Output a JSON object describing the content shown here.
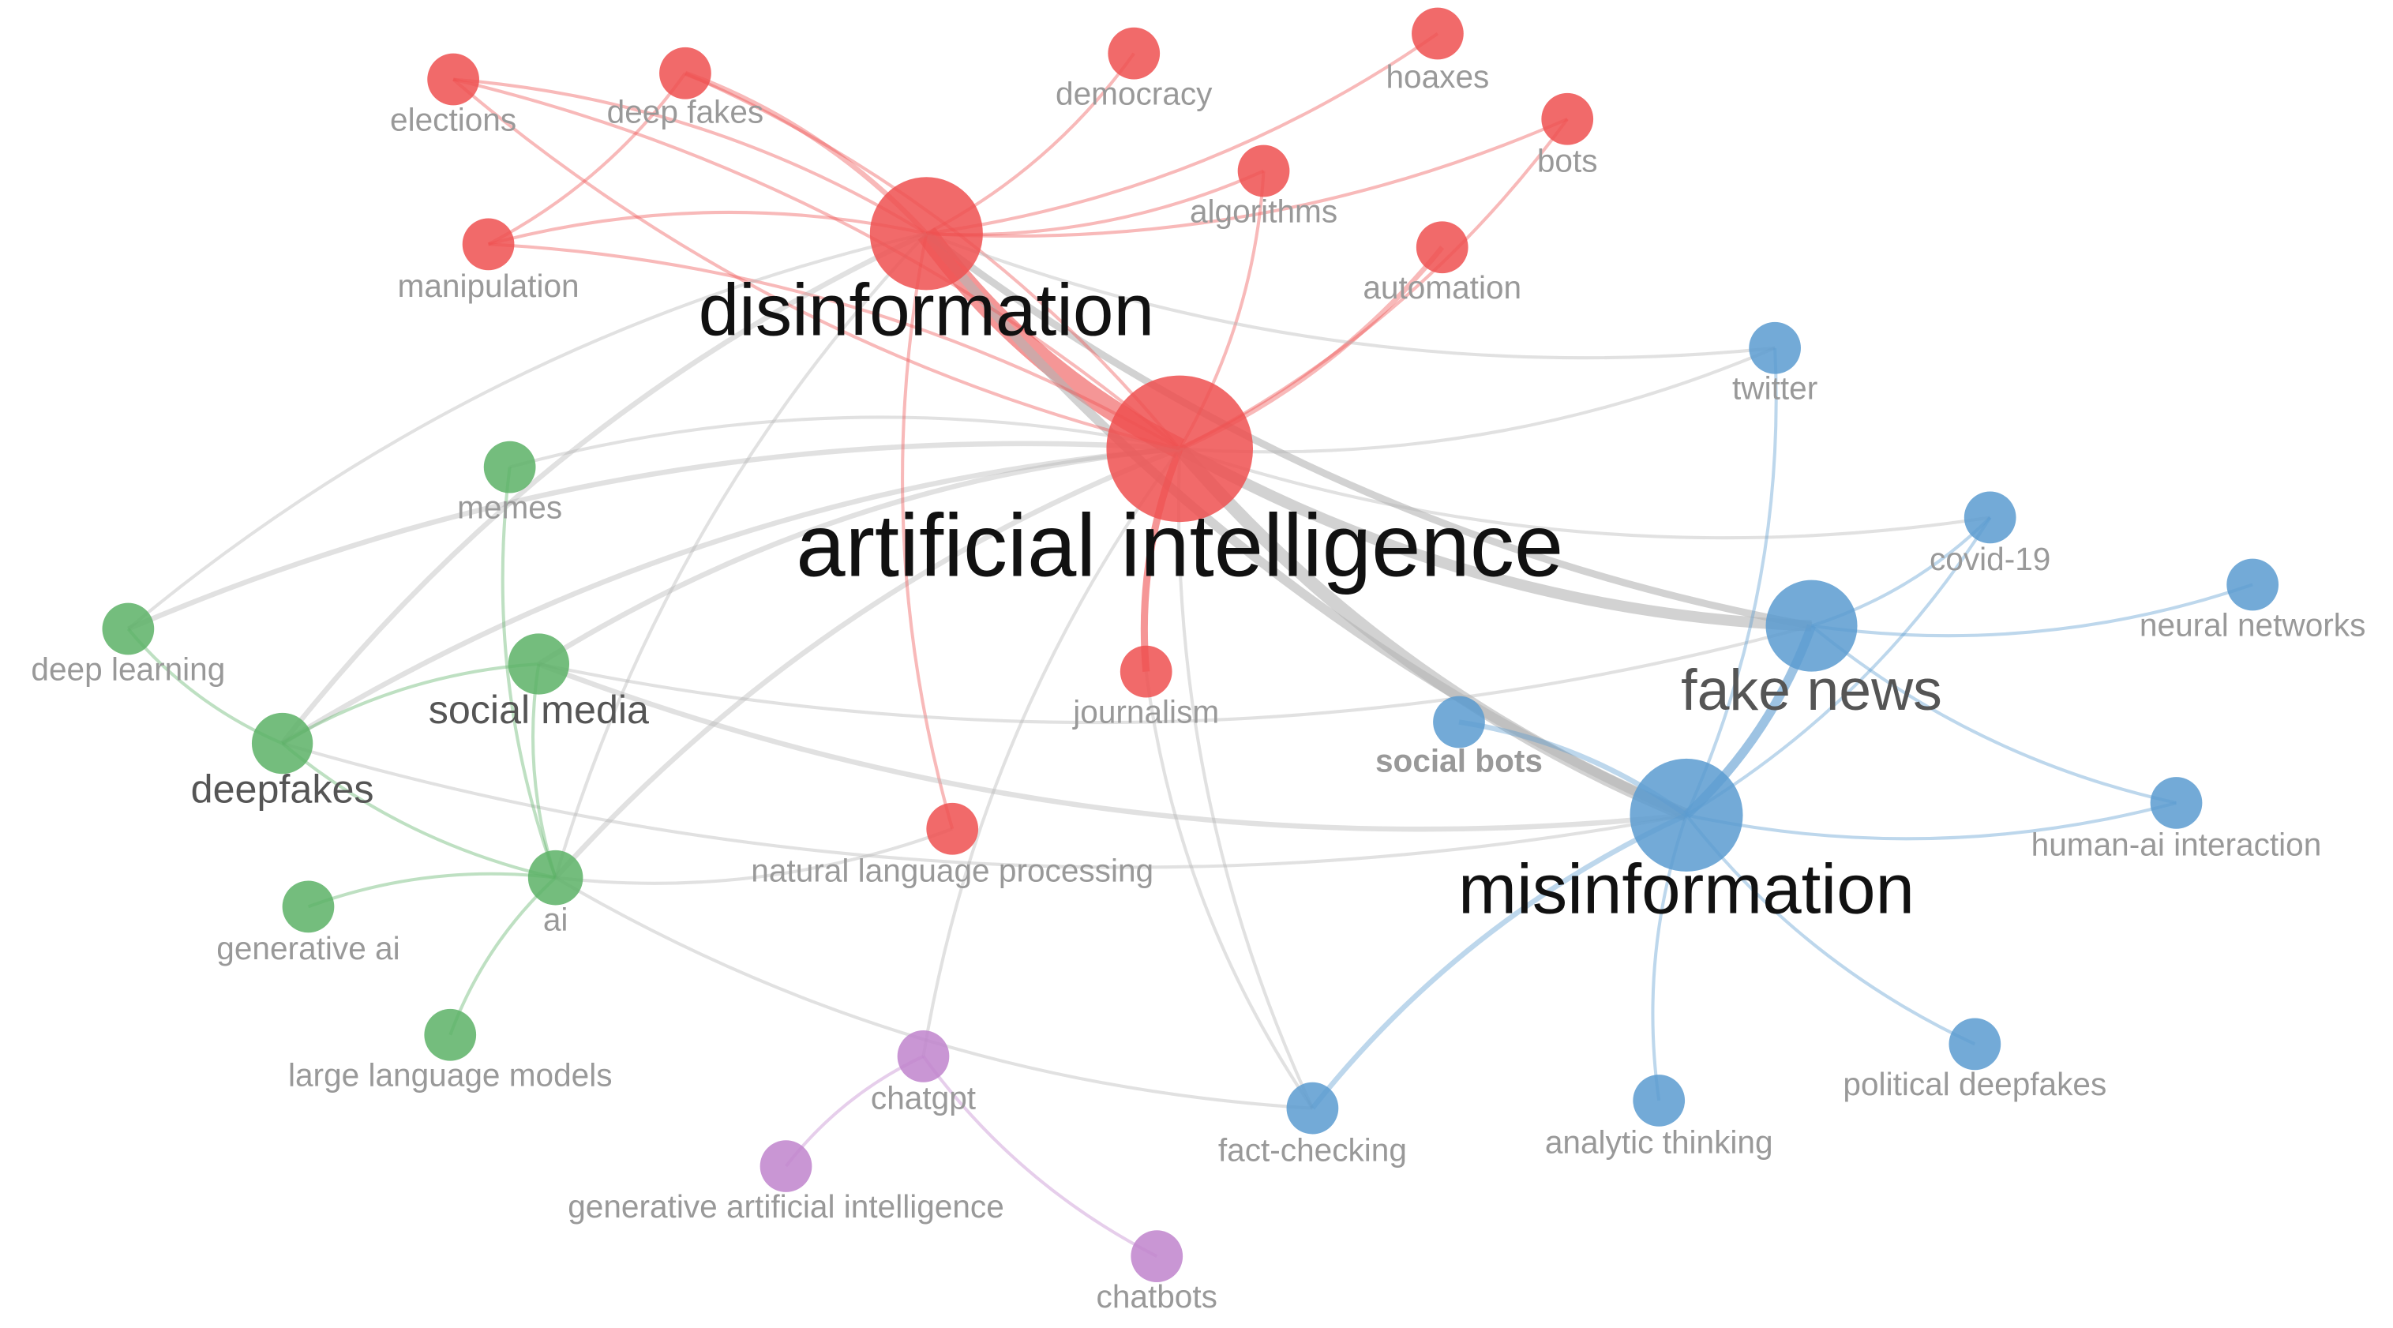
{
  "clusters": {
    "red": "#ee5050",
    "green": "#5cb266",
    "blue": "#5b9bd0",
    "purple": "#c084cc",
    "inter_cluster_link": "#b4b4b4"
  },
  "nodes": [
    {
      "id": "elections",
      "label": "elections",
      "cluster": "red"
    },
    {
      "id": "deep-fakes",
      "label": "deep fakes",
      "cluster": "red"
    },
    {
      "id": "democracy",
      "label": "democracy",
      "cluster": "red"
    },
    {
      "id": "hoaxes",
      "label": "hoaxes",
      "cluster": "red"
    },
    {
      "id": "bots",
      "label": "bots",
      "cluster": "red"
    },
    {
      "id": "algorithms",
      "label": "algorithms",
      "cluster": "red"
    },
    {
      "id": "manipulation",
      "label": "manipulation",
      "cluster": "red"
    },
    {
      "id": "disinformation",
      "label": "disinformation",
      "cluster": "red"
    },
    {
      "id": "automation",
      "label": "automation",
      "cluster": "red"
    },
    {
      "id": "artificial-intelligence",
      "label": "artificial intelligence",
      "cluster": "red"
    },
    {
      "id": "journalism",
      "label": "journalism",
      "cluster": "red"
    },
    {
      "id": "nlp",
      "label": "natural language processing",
      "cluster": "red"
    },
    {
      "id": "memes",
      "label": "memes",
      "cluster": "green"
    },
    {
      "id": "deep-learning",
      "label": "deep learning",
      "cluster": "green"
    },
    {
      "id": "social-media",
      "label": "social media",
      "cluster": "green"
    },
    {
      "id": "deepfakes",
      "label": "deepfakes",
      "cluster": "green"
    },
    {
      "id": "ai",
      "label": "ai",
      "cluster": "green"
    },
    {
      "id": "generative-ai",
      "label": "generative ai",
      "cluster": "green"
    },
    {
      "id": "llm",
      "label": "large language models",
      "cluster": "green"
    },
    {
      "id": "twitter",
      "label": "twitter",
      "cluster": "blue"
    },
    {
      "id": "covid-19",
      "label": "covid-19",
      "cluster": "blue"
    },
    {
      "id": "neural-networks",
      "label": "neural networks",
      "cluster": "blue"
    },
    {
      "id": "fake-news",
      "label": "fake news",
      "cluster": "blue"
    },
    {
      "id": "social-bots",
      "label": "social bots",
      "cluster": "blue"
    },
    {
      "id": "misinformation",
      "label": "misinformation",
      "cluster": "blue"
    },
    {
      "id": "human-ai-interaction",
      "label": "human-ai interaction",
      "cluster": "blue"
    },
    {
      "id": "political-deepfakes",
      "label": "political deepfakes",
      "cluster": "blue"
    },
    {
      "id": "analytic-thinking",
      "label": "analytic thinking",
      "cluster": "blue"
    },
    {
      "id": "fact-checking",
      "label": "fact-checking",
      "cluster": "blue"
    },
    {
      "id": "chatgpt",
      "label": "chatgpt",
      "cluster": "purple"
    },
    {
      "id": "generative-artificial-intelligence",
      "label": "generative artificial intelligence",
      "cluster": "purple"
    },
    {
      "id": "chatbots",
      "label": "chatbots",
      "cluster": "purple"
    }
  ],
  "links": [
    [
      "disinformation",
      "artificial-intelligence",
      10
    ],
    [
      "artificial-intelligence",
      "misinformation",
      6
    ],
    [
      "artificial-intelligence",
      "fake-news",
      5
    ],
    [
      "disinformation",
      "misinformation",
      4
    ],
    [
      "disinformation",
      "fake-news",
      3
    ],
    [
      "misinformation",
      "fake-news",
      4
    ],
    [
      "artificial-intelligence",
      "journalism",
      3
    ],
    [
      "artificial-intelligence",
      "automation",
      2
    ],
    [
      "artificial-intelligence",
      "bots",
      1
    ],
    [
      "artificial-intelligence",
      "deep-fakes",
      1
    ],
    [
      "artificial-intelligence",
      "elections",
      1
    ],
    [
      "artificial-intelligence",
      "manipulation",
      1
    ],
    [
      "artificial-intelligence",
      "algorithms",
      1
    ],
    [
      "artificial-intelligence",
      "deep-learning",
      2
    ],
    [
      "artificial-intelligence",
      "social-media",
      2
    ],
    [
      "artificial-intelligence",
      "deepfakes",
      2
    ],
    [
      "artificial-intelligence",
      "ai",
      2
    ],
    [
      "artificial-intelligence",
      "memes",
      1
    ],
    [
      "artificial-intelligence",
      "twitter",
      1
    ],
    [
      "artificial-intelligence",
      "covid-19",
      1
    ],
    [
      "artificial-intelligence",
      "fact-checking",
      1
    ],
    [
      "artificial-intelligence",
      "chatgpt",
      1
    ],
    [
      "disinformation",
      "deep-fakes",
      2
    ],
    [
      "disinformation",
      "elections",
      1
    ],
    [
      "disinformation",
      "democracy",
      1
    ],
    [
      "disinformation",
      "hoaxes",
      1
    ],
    [
      "disinformation",
      "bots",
      1
    ],
    [
      "disinformation",
      "algorithms",
      1
    ],
    [
      "disinformation",
      "manipulation",
      1
    ],
    [
      "disinformation",
      "nlp",
      1
    ],
    [
      "disinformation",
      "deepfakes",
      2
    ],
    [
      "disinformation",
      "deep-learning",
      1
    ],
    [
      "disinformation",
      "twitter",
      1
    ],
    [
      "disinformation",
      "ai",
      1
    ],
    [
      "manipulation",
      "deep-fakes",
      1
    ],
    [
      "elections",
      "artificial-intelligence",
      1
    ],
    [
      "social-media",
      "misinformation",
      2
    ],
    [
      "social-media",
      "fake-news",
      1
    ],
    [
      "deepfakes",
      "misinformation",
      1
    ],
    [
      "deepfakes",
      "ai",
      1
    ],
    [
      "deep-learning",
      "deepfakes",
      1
    ],
    [
      "social-media",
      "deepfakes",
      1
    ],
    [
      "memes",
      "ai",
      1
    ],
    [
      "social-media",
      "ai",
      1
    ],
    [
      "ai",
      "generative-ai",
      1
    ],
    [
      "ai",
      "llm",
      1
    ],
    [
      "ai",
      "fact-checking",
      1
    ],
    [
      "ai",
      "nlp",
      1
    ],
    [
      "misinformation",
      "social-bots",
      2
    ],
    [
      "misinformation",
      "fact-checking",
      2
    ],
    [
      "misinformation",
      "twitter",
      1
    ],
    [
      "misinformation",
      "human-ai-interaction",
      1
    ],
    [
      "misinformation",
      "political-deepfakes",
      1
    ],
    [
      "misinformation",
      "analytic-thinking",
      1
    ],
    [
      "misinformation",
      "covid-19",
      1
    ],
    [
      "fake-news",
      "neural-networks",
      1
    ],
    [
      "fake-news",
      "covid-19",
      1
    ],
    [
      "fake-news",
      "human-ai-interaction",
      1
    ],
    [
      "chatgpt",
      "generative-artificial-intelligence",
      1
    ],
    [
      "chatgpt",
      "chatbots",
      1
    ],
    [
      "journalism",
      "fact-checking",
      1
    ]
  ]
}
